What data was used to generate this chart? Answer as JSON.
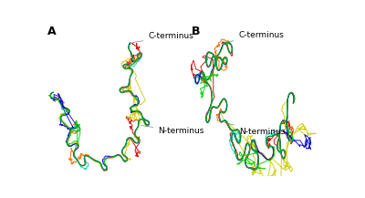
{
  "panel_a_label": "A",
  "panel_b_label": "B",
  "c_terminus": "C-terminus",
  "n_terminus": "N-terminus",
  "background_color": "#ffffff",
  "colors": [
    "#00cc00",
    "#0000cc",
    "#cc0000",
    "#ff6600",
    "#cccc00",
    "#cc00cc",
    "#00cccc"
  ],
  "line_width": 0.7,
  "n_conformations": 6,
  "title_fontsize": 9,
  "label_fontsize": 6.5,
  "annot_lw": 0.5
}
